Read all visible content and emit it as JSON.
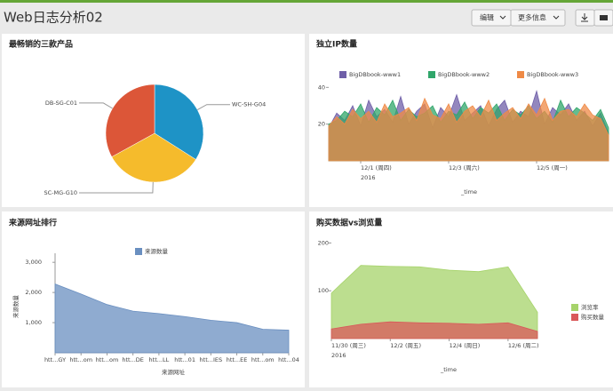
{
  "header": {
    "title": "Web日志分析02",
    "buttons": [
      "编辑",
      "更多信息"
    ]
  },
  "chart_data": [
    {
      "type": "pie",
      "title": "最畅销的三款产品",
      "categories": [
        "WC-SH-G04",
        "SC-MG-G10",
        "DB-SG-C01"
      ],
      "values": [
        34,
        33,
        33
      ],
      "colors": [
        "#1e93c6",
        "#f5bb2c",
        "#dc5638"
      ]
    },
    {
      "type": "area",
      "title": "独立IP数量",
      "legend": "top",
      "categories": [
        null,
        null,
        null,
        null,
        "12/1 (周四)",
        null,
        null,
        null,
        null,
        null,
        null,
        null,
        null,
        null,
        null,
        "12/3 (周六)",
        null,
        null,
        null,
        null,
        null,
        null,
        null,
        null,
        null,
        null,
        "12/5 (周一)",
        null,
        null,
        null,
        null,
        null,
        null,
        null,
        null,
        null
      ],
      "x_sublabel": "2016",
      "xlabel": "_time",
      "ylim": [
        0,
        45
      ],
      "yticks": [
        20,
        40
      ],
      "series": [
        {
          "name": "BigDBbook-www1",
          "color": "#6f5fa8",
          "values": [
            18,
            26,
            22,
            30,
            19,
            33,
            24,
            28,
            21,
            35,
            20,
            27,
            31,
            18,
            29,
            24,
            36,
            22,
            26,
            30,
            19,
            28,
            33,
            21,
            27,
            24,
            38,
            20,
            29,
            25,
            31,
            22,
            27,
            19,
            26,
            15
          ]
        },
        {
          "name": "BigDBbook-www2",
          "color": "#30a66a",
          "values": [
            20,
            22,
            27,
            24,
            31,
            21,
            29,
            25,
            33,
            22,
            28,
            24,
            26,
            30,
            21,
            27,
            25,
            32,
            23,
            29,
            26,
            31,
            22,
            28,
            25,
            30,
            23,
            27,
            21,
            33,
            24,
            29,
            26,
            22,
            28,
            18
          ]
        },
        {
          "name": "BigDBbook-www3",
          "color": "#ef8a46",
          "values": [
            19,
            24,
            20,
            28,
            23,
            27,
            21,
            31,
            24,
            26,
            29,
            22,
            34,
            25,
            23,
            31,
            21,
            27,
            30,
            24,
            33,
            22,
            26,
            29,
            23,
            31,
            25,
            34,
            22,
            27,
            28,
            24,
            31,
            25,
            23,
            14
          ]
        }
      ]
    },
    {
      "type": "area",
      "title": "来源网址排行",
      "legend": "top",
      "categories": [
        "htt...GY",
        "htt...om",
        "htt...om",
        "htt...DE",
        "htt...LL",
        "htt...01",
        "htt...IES",
        "htt...EE",
        "htt...om",
        "htt...04"
      ],
      "xlabel": "来源网址",
      "ylabel": "来源数量",
      "ylim": [
        0,
        3300
      ],
      "yticks": [
        {
          "value": 1000,
          "label": "1,000"
        },
        {
          "value": 2000,
          "label": "2,000"
        },
        {
          "value": 3000,
          "label": "3,000"
        }
      ],
      "series": [
        {
          "name": "来源数量",
          "color": "#6a8fc0",
          "values": [
            2280,
            1950,
            1600,
            1380,
            1300,
            1200,
            1080,
            1000,
            780,
            750
          ]
        }
      ]
    },
    {
      "type": "area",
      "title": "购买数据vs浏览量",
      "legend": "right",
      "categories": [
        "11/30 (周三)",
        null,
        "12/2 (周五)",
        null,
        "12/4 (周日)",
        null,
        "12/6 (周二)",
        null
      ],
      "x_sublabel": "2016",
      "xlabel": "_time",
      "ylim": [
        0,
        210
      ],
      "yticks": [
        100,
        200
      ],
      "series": [
        {
          "name": "浏览率",
          "color": "#a6d36a",
          "values": [
            95,
            153,
            151,
            150,
            143,
            140,
            150,
            55
          ]
        },
        {
          "name": "购买数量",
          "color": "#d9585a",
          "values": [
            20,
            30,
            35,
            33,
            32,
            30,
            33,
            15
          ]
        }
      ]
    }
  ]
}
